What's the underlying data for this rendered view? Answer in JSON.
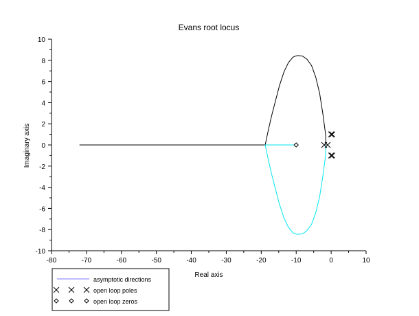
{
  "chart_data": {
    "type": "line",
    "title": "Evans root locus",
    "xlabel": "Real axis",
    "ylabel": "Imaginary axis",
    "xlim": [
      -80,
      10
    ],
    "ylim": [
      -10,
      10
    ],
    "xticks": [
      -80,
      -70,
      -60,
      -50,
      -40,
      -30,
      -20,
      -10,
      0,
      10
    ],
    "yticks": [
      -10,
      -8,
      -6,
      -4,
      -2,
      0,
      2,
      4,
      6,
      8,
      10
    ],
    "grid": false,
    "legend_position": "bottom-left",
    "series": [
      {
        "color": "#000000",
        "x": [
          -1.5,
          -1.6,
          -2.4,
          -3.3,
          -4.4,
          -5.6,
          -6.9,
          -8.2,
          -9.5,
          -10.2,
          -10.9,
          -12.2,
          -13.5,
          -14.8,
          -15.9,
          -17.0,
          -17.9,
          -18.5,
          -18.8,
          -18.9,
          -20,
          -40,
          -60,
          -72
        ],
        "y": [
          0,
          1.0,
          3.0,
          4.9,
          6.4,
          7.5,
          8.1,
          8.4,
          8.45,
          8.4,
          8.3,
          7.8,
          6.9,
          5.6,
          4.2,
          2.8,
          1.5,
          0.6,
          0.1,
          0,
          0,
          0,
          0,
          0
        ]
      },
      {
        "color": "#00e5ee",
        "x": [
          -1.5,
          -1.6,
          -2.4,
          -3.3,
          -4.4,
          -5.6,
          -6.9,
          -8.2,
          -9.5,
          -10.2,
          -10.9,
          -12.2,
          -13.5,
          -14.8,
          -15.9,
          -17.0,
          -17.9,
          -18.5,
          -18.8,
          -18.9,
          -15,
          -10.5
        ],
        "y": [
          0,
          -1.0,
          -3.0,
          -4.9,
          -6.4,
          -7.5,
          -8.1,
          -8.4,
          -8.45,
          -8.4,
          -8.3,
          -7.8,
          -6.9,
          -5.6,
          -4.2,
          -2.8,
          -1.5,
          -0.6,
          -0.1,
          0,
          0,
          0
        ]
      }
    ],
    "open_loop_poles": [
      [
        -2,
        0
      ],
      [
        -1,
        0
      ],
      [
        0,
        1
      ],
      [
        0,
        -1
      ],
      [
        0.3,
        1
      ],
      [
        0.3,
        -1
      ]
    ],
    "open_loop_zeros": [
      [
        -10,
        0
      ]
    ],
    "legend": [
      {
        "label": "asymptotic directions",
        "marker": "line"
      },
      {
        "label": "open loop poles",
        "marker": "x"
      },
      {
        "label": "open loop zeros",
        "marker": "diamond"
      }
    ]
  }
}
